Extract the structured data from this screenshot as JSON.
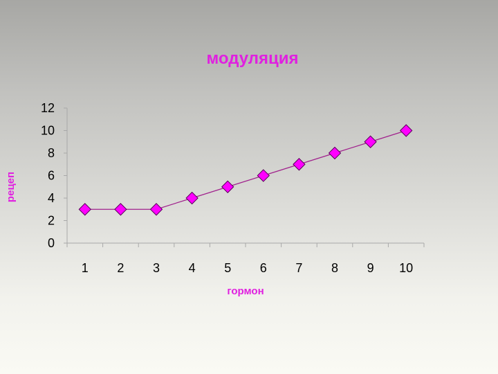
{
  "chart_data": {
    "type": "line",
    "title": "модуляция",
    "xlabel": "гормон",
    "ylabel": "рецеп",
    "categories": [
      "1",
      "2",
      "3",
      "4",
      "5",
      "6",
      "7",
      "8",
      "9",
      "10"
    ],
    "series": [
      {
        "values": [
          3,
          3,
          3,
          4,
          5,
          6,
          7,
          8,
          9,
          10
        ]
      }
    ],
    "ylim": [
      0,
      12
    ],
    "yticks": [
      "0",
      "2",
      "4",
      "6",
      "8",
      "10",
      "12"
    ],
    "grid": false,
    "legend": "none",
    "marker": "diamond"
  },
  "colors": {
    "title": "#e020e0",
    "axis_title": "#e020e0",
    "line": "#a0208c",
    "marker_fill": "#ff00ff",
    "marker_stroke": "#5a005a",
    "axis": "#a8a8a8"
  }
}
